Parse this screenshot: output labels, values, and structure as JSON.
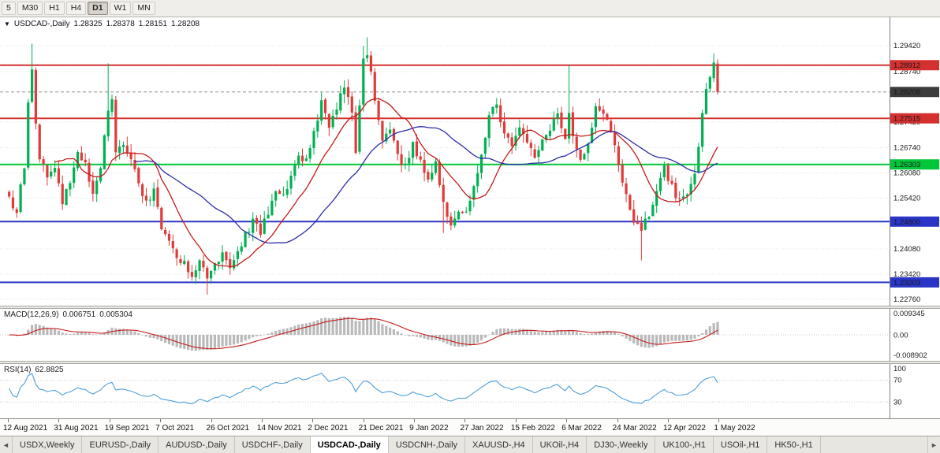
{
  "toolbar": {
    "timeframes": [
      {
        "label": "5",
        "active": false
      },
      {
        "label": "M30",
        "active": false
      },
      {
        "label": "H1",
        "active": false
      },
      {
        "label": "H4",
        "active": false
      },
      {
        "label": "D1",
        "active": true
      },
      {
        "label": "W1",
        "active": false
      },
      {
        "label": "MN",
        "active": false
      }
    ]
  },
  "chart_header": {
    "collapse_icon": "▼",
    "symbol_label": "USDCAD-,Daily",
    "open": "1.28325",
    "high": "1.28378",
    "low": "1.28151",
    "close": "1.28208"
  },
  "indicators": {
    "macd": {
      "name": "MACD(12,26,9)",
      "main_value": "0.006751",
      "signal_value": "0.005304",
      "axis_labels": [
        "0.009345",
        "0.00",
        "-0.008902"
      ]
    },
    "rsi": {
      "name": "RSI(14)",
      "value": "62.8825",
      "axis_labels": [
        "100",
        "70",
        "30"
      ],
      "levels": [
        70,
        30
      ]
    }
  },
  "price_axis": {
    "tick_labels": [
      "1.29420",
      "1.28740",
      "1.27420",
      "1.26740",
      "1.26080",
      "1.25420",
      "1.24080",
      "1.23420",
      "1.22760"
    ],
    "current_tag": {
      "label": "1.28208",
      "color": "#3c3c3c"
    }
  },
  "x_axis": {
    "labels": [
      "12 Aug 2021",
      "31 Aug 2021",
      "19 Sep 2021",
      "7 Oct 2021",
      "26 Oct 2021",
      "14 Nov 2021",
      "2 Dec 2021",
      "21 Dec 2021",
      "9 Jan 2022",
      "27 Jan 2022",
      "15 Feb 2022",
      "6 Mar 2022",
      "24 Mar 2022",
      "12 Apr 2022",
      "1 May 2022"
    ]
  },
  "tabs": {
    "left_arrow": "◄",
    "right_arrow": "►",
    "items": [
      {
        "label": "USDX,Weekly",
        "active": false
      },
      {
        "label": "EURUSD-,Daily",
        "active": false
      },
      {
        "label": "AUDUSD-,Daily",
        "active": false
      },
      {
        "label": "USDCHF-,Daily",
        "active": false
      },
      {
        "label": "USDCAD-,Daily",
        "active": true
      },
      {
        "label": "USDCNH-,Daily",
        "active": false
      },
      {
        "label": "XAUUSD-,H4",
        "active": false
      },
      {
        "label": "UKOil-,H4",
        "active": false
      },
      {
        "label": "DJ30-,Weekly",
        "active": false
      },
      {
        "label": "UK100-,H1",
        "active": false
      },
      {
        "label": "USOil-,H1",
        "active": false
      },
      {
        "label": "HK50-,H1",
        "active": false
      }
    ]
  },
  "chart_data": {
    "type": "candlestick",
    "symbol": "USDCAD-,Daily",
    "bar_count": 187,
    "y_range": {
      "top": 1.3017,
      "bottom": 1.2259
    },
    "current_price": 1.28208,
    "h_lines": [
      {
        "value": 1.28912,
        "label": "1.28912",
        "color": "#d43030"
      },
      {
        "value": 1.27515,
        "label": "1.27515",
        "color": "#d43030"
      },
      {
        "value": 1.26303,
        "label": "1.26303",
        "color": "#00c63a"
      },
      {
        "value": 1.248,
        "label": "1.24800",
        "color": "#2a35c8"
      },
      {
        "value": 1.23203,
        "label": "1.23203",
        "color": "#2a35c8"
      }
    ],
    "price_path": [
      [
        0,
        1.254
      ],
      [
        2,
        1.2505
      ],
      [
        4,
        1.263
      ],
      [
        5,
        1.279
      ],
      [
        6,
        1.288
      ],
      [
        7,
        1.2745
      ],
      [
        8,
        1.2648
      ],
      [
        10,
        1.26
      ],
      [
        12,
        1.2625
      ],
      [
        14,
        1.2535
      ],
      [
        16,
        1.2585
      ],
      [
        18,
        1.2655
      ],
      [
        20,
        1.2625
      ],
      [
        22,
        1.2545
      ],
      [
        24,
        1.263
      ],
      [
        26,
        1.2775
      ],
      [
        27,
        1.281
      ],
      [
        28,
        1.2655
      ],
      [
        30,
        1.268
      ],
      [
        32,
        1.2655
      ],
      [
        34,
        1.2585
      ],
      [
        36,
        1.253
      ],
      [
        38,
        1.256
      ],
      [
        40,
        1.2465
      ],
      [
        42,
        1.243
      ],
      [
        44,
        1.239
      ],
      [
        46,
        1.2368
      ],
      [
        48,
        1.234
      ],
      [
        50,
        1.2368
      ],
      [
        52,
        1.2332
      ],
      [
        54,
        1.2372
      ],
      [
        56,
        1.2392
      ],
      [
        58,
        1.236
      ],
      [
        60,
        1.2398
      ],
      [
        62,
        1.2442
      ],
      [
        64,
        1.2478
      ],
      [
        66,
        1.2455
      ],
      [
        68,
        1.2502
      ],
      [
        70,
        1.2562
      ],
      [
        72,
        1.2545
      ],
      [
        74,
        1.2602
      ],
      [
        76,
        1.2652
      ],
      [
        78,
        1.264
      ],
      [
        80,
        1.2712
      ],
      [
        82,
        1.2788
      ],
      [
        84,
        1.2735
      ],
      [
        86,
        1.2782
      ],
      [
        88,
        1.2842
      ],
      [
        90,
        1.2772
      ],
      [
        91,
        1.2652
      ],
      [
        92,
        1.2782
      ],
      [
        93,
        1.2902
      ],
      [
        94,
        1.2928
      ],
      [
        95,
        1.2878
      ],
      [
        96,
        1.2792
      ],
      [
        98,
        1.2682
      ],
      [
        100,
        1.2722
      ],
      [
        102,
        1.2652
      ],
      [
        104,
        1.2622
      ],
      [
        106,
        1.2682
      ],
      [
        108,
        1.2642
      ],
      [
        110,
        1.2592
      ],
      [
        112,
        1.2642
      ],
      [
        114,
        1.2522
      ],
      [
        116,
        1.2468
      ],
      [
        118,
        1.2512
      ],
      [
        120,
        1.2502
      ],
      [
        122,
        1.2582
      ],
      [
        124,
        1.2652
      ],
      [
        126,
        1.2752
      ],
      [
        128,
        1.2792
      ],
      [
        130,
        1.2702
      ],
      [
        132,
        1.2682
      ],
      [
        134,
        1.2732
      ],
      [
        136,
        1.2692
      ],
      [
        138,
        1.2642
      ],
      [
        140,
        1.2692
      ],
      [
        142,
        1.2722
      ],
      [
        144,
        1.2762
      ],
      [
        146,
        1.2702
      ],
      [
        147,
        1.2772
      ],
      [
        148,
        1.2712
      ],
      [
        150,
        1.2642
      ],
      [
        152,
        1.2692
      ],
      [
        154,
        1.2782
      ],
      [
        156,
        1.2762
      ],
      [
        158,
        1.2722
      ],
      [
        160,
        1.2622
      ],
      [
        162,
        1.2552
      ],
      [
        164,
        1.2482
      ],
      [
        166,
        1.2455
      ],
      [
        168,
        1.2502
      ],
      [
        170,
        1.2562
      ],
      [
        172,
        1.2622
      ],
      [
        174,
        1.2572
      ],
      [
        176,
        1.2532
      ],
      [
        178,
        1.2562
      ],
      [
        180,
        1.2602
      ],
      [
        181,
        1.2682
      ],
      [
        182,
        1.2762
      ],
      [
        183,
        1.2822
      ],
      [
        184,
        1.2868
      ],
      [
        185,
        1.2896
      ],
      [
        186,
        1.28208
      ]
    ],
    "spikes": [
      {
        "i": 6,
        "high": 1.2948
      },
      {
        "i": 26,
        "high": 1.2896
      },
      {
        "i": 52,
        "low": 1.2288
      },
      {
        "i": 93,
        "high": 1.2942
      },
      {
        "i": 94,
        "high": 1.2964
      },
      {
        "i": 114,
        "low": 1.245
      },
      {
        "i": 147,
        "high": 1.289
      },
      {
        "i": 166,
        "low": 1.2378
      },
      {
        "i": 185,
        "high": 1.2922
      }
    ],
    "ma_fast_period": 13,
    "ma_slow_period": 34,
    "macd": {
      "fast": 12,
      "slow": 26,
      "signal": 9,
      "y_max": 0.0112
    },
    "rsi_period": 14,
    "colors": {
      "up": "#00b050",
      "down": "#e03a3a",
      "ma_fast": "#c41a1a",
      "ma_slow": "#2c2ca8",
      "macd_hist": "#b9b9b9",
      "macd_signal": "#c41a1a",
      "rsi_line": "#4f9fd8",
      "grid": "#e3e3e3"
    }
  }
}
